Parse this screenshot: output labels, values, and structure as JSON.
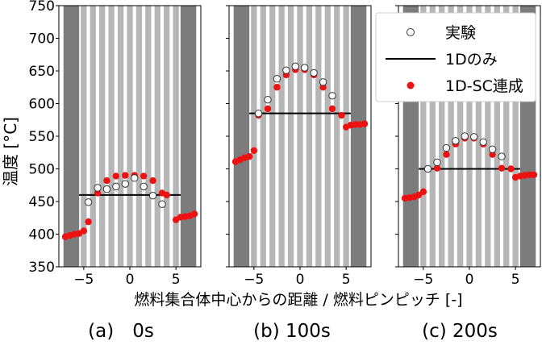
{
  "chart_data": {
    "type": "scatter",
    "ylabel": "温度 [°C]",
    "xlabel": "燃料集合体中心からの距離 / 燃料ピンピッチ [-]",
    "ylim": [
      350,
      750
    ],
    "yticks": [
      "350",
      "400",
      "450",
      "500",
      "550",
      "600",
      "650",
      "700",
      "750"
    ],
    "xlim": [
      -7.7,
      7.7
    ],
    "xticks": [
      -5,
      0,
      5
    ],
    "xtick_labels": [
      "−5",
      "0",
      "5"
    ],
    "legend": {
      "position": "top-right of third panel",
      "entries": [
        "実験",
        "1Dのみ",
        "1D-SC連成"
      ]
    },
    "panels": [
      {
        "label": "(a)　0s",
        "line_1d": {
          "x": [
            -5.5,
            5.5
          ],
          "y": 460
        },
        "experiment": {
          "x": [
            -4.5,
            -3.5,
            -2.5,
            -1.5,
            -0.5,
            0.5,
            1.5,
            2.5,
            3.5
          ],
          "y": [
            449,
            471,
            469,
            473,
            477,
            486,
            473,
            459,
            446
          ]
        },
        "sc_coupled": {
          "x": [
            -7,
            -6.5,
            -6,
            -5.5,
            -5,
            -4.5,
            -3.5,
            -2.5,
            -1.5,
            -0.5,
            0.5,
            1.5,
            2.5,
            3.5,
            4,
            5,
            5.5,
            6,
            6.5,
            7
          ],
          "y": [
            396,
            398,
            400,
            401,
            405,
            419,
            463,
            482,
            489,
            490,
            490,
            489,
            482,
            463,
            460,
            422,
            426,
            427,
            428,
            431
          ]
        }
      },
      {
        "label": "(b) 100s",
        "line_1d": {
          "x": [
            -5.5,
            5.5
          ],
          "y": 585
        },
        "experiment": {
          "x": [
            -4.5,
            -3.5,
            -2.5,
            -1.5,
            -0.5,
            0.5,
            1.5,
            2.5,
            3.5
          ],
          "y": [
            585,
            606,
            638,
            651,
            657,
            655,
            647,
            633,
            612
          ]
        },
        "sc_coupled": {
          "x": [
            -7,
            -6.5,
            -6,
            -5.5,
            -5,
            -4.5,
            -3.5,
            -2.5,
            -1.5,
            -0.5,
            0.5,
            1.5,
            2.5,
            3.5,
            4.5,
            5,
            5.5,
            6,
            6.5,
            7
          ],
          "y": [
            511,
            514,
            517,
            519,
            528,
            582,
            592,
            625,
            644,
            652,
            652,
            644,
            625,
            592,
            582,
            564,
            567,
            568,
            568,
            569
          ]
        }
      },
      {
        "label": "(c) 200s",
        "line_1d": {
          "x": [
            -5.5,
            5.5
          ],
          "y": 500
        },
        "experiment": {
          "x": [
            -4.5,
            -3.5,
            -2.5,
            -1.5,
            -0.5,
            0.5,
            1.5,
            2.5,
            3.5
          ],
          "y": [
            500,
            510,
            532,
            543,
            550,
            549,
            541,
            530,
            519
          ]
        },
        "sc_coupled": {
          "x": [
            -7,
            -6.5,
            -6,
            -5.5,
            -5,
            -4.5,
            -3.5,
            -2.5,
            -1.5,
            -0.5,
            0.5,
            1.5,
            2.5,
            3.5,
            4.5,
            5,
            5.5,
            6,
            6.5,
            7
          ],
          "y": [
            455,
            456,
            457,
            460,
            465,
            500,
            501,
            522,
            538,
            547,
            547,
            538,
            522,
            501,
            500,
            487,
            489,
            490,
            491,
            491
          ]
        }
      }
    ]
  },
  "colors": {
    "assembly_wall": "#7c7c7c",
    "pin_stripe": "#b6b6b6",
    "gap_stripe": "#ffffff",
    "line_1d": "#000000",
    "sc_marker": "#ee1111",
    "exp_marker_fill": "#ffffff",
    "exp_marker_edge": "#333333"
  }
}
